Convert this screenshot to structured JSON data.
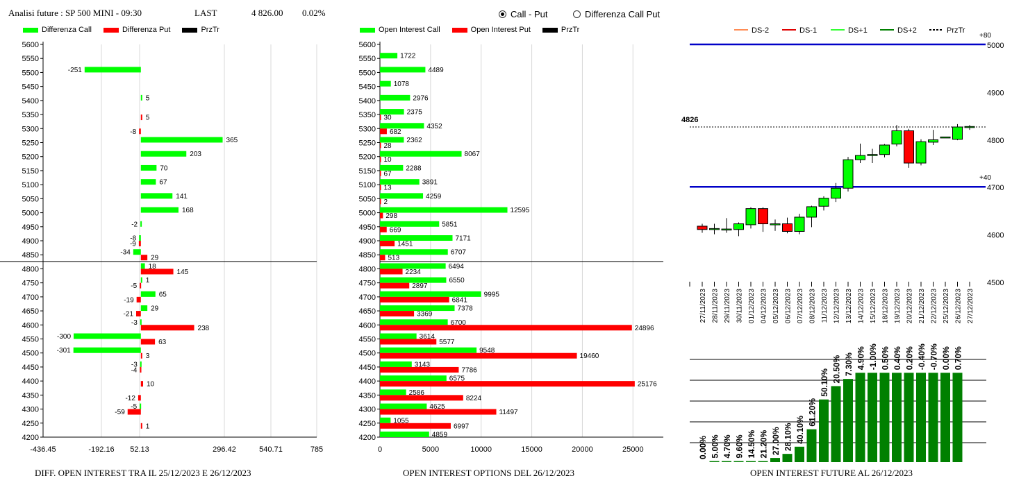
{
  "header": {
    "title": "Analisi future : SP 500 MINI - 09:30",
    "last_label": "LAST",
    "last_value": "4 826.00",
    "change": "0.02%"
  },
  "radio": {
    "call_put": "Call - Put",
    "diff_call_put": "Differenza Call Put",
    "selected": "call_put"
  },
  "colors": {
    "green": "#00ff00",
    "red": "#ff0000",
    "dark_green": "#008000",
    "blue": "#0000c8",
    "black": "#000000"
  },
  "footers": {
    "left": "DIFF. OPEN INTEREST TRA IL 25/12/2023 E 26/12/2023",
    "middle": "OPEN INTEREST OPTIONS DEL 26/12/2023",
    "right": "OPEN INTEREST FUTURE AL 26/12/2023"
  },
  "chart_data": [
    {
      "type": "bar",
      "orientation": "horizontal",
      "legend": [
        "Differenza Call",
        "Differenza Put",
        "PrzTr"
      ],
      "categories": [
        5600,
        5550,
        5500,
        5450,
        5400,
        5350,
        5300,
        5250,
        5200,
        5150,
        5100,
        5050,
        5000,
        4950,
        4900,
        4850,
        4800,
        4750,
        4700,
        4650,
        4600,
        4550,
        4500,
        4450,
        4400,
        4350,
        4300,
        4250,
        4200
      ],
      "series": [
        {
          "name": "Differenza Call",
          "color": "#00ff00",
          "values": [
            null,
            null,
            -251,
            null,
            5,
            null,
            null,
            365,
            203,
            70,
            67,
            141,
            168,
            -2,
            -8,
            -34,
            18,
            1,
            65,
            29,
            -3,
            -300,
            -301,
            -3,
            null,
            null,
            -5,
            null,
            null
          ]
        },
        {
          "name": "Differenza Put",
          "color": "#ff0000",
          "values": [
            null,
            null,
            null,
            null,
            null,
            5,
            -8,
            null,
            null,
            null,
            null,
            null,
            null,
            null,
            -9,
            29,
            145,
            -5,
            -19,
            -21,
            238,
            63,
            3,
            -4,
            10,
            -12,
            -59,
            1,
            null
          ]
        }
      ],
      "przTr": 4826,
      "xticks": [
        "-436.45",
        "-192.16",
        "52.13",
        "296.42",
        "540.71",
        "785"
      ],
      "xlim": [
        -436.45,
        785
      ],
      "ylim": [
        4200,
        5600
      ]
    },
    {
      "type": "bar",
      "orientation": "horizontal",
      "legend": [
        "Open Interest Call",
        "Open Interest Put",
        "PrzTr"
      ],
      "categories": [
        5600,
        5550,
        5500,
        5450,
        5400,
        5350,
        5300,
        5250,
        5200,
        5150,
        5100,
        5050,
        5000,
        4950,
        4900,
        4850,
        4800,
        4750,
        4700,
        4650,
        4600,
        4550,
        4500,
        4450,
        4400,
        4350,
        4300,
        4250,
        4200
      ],
      "series": [
        {
          "name": "Open Interest Call",
          "color": "#00ff00",
          "values": [
            null,
            1722,
            4489,
            1078,
            2976,
            2375,
            4352,
            2362,
            8067,
            2288,
            3891,
            4259,
            12595,
            5851,
            7171,
            6707,
            6494,
            6550,
            9995,
            7378,
            6700,
            3614,
            9548,
            3143,
            6575,
            2586,
            4625,
            1055,
            4859
          ]
        },
        {
          "name": "Open Interest Put",
          "color": "#ff0000",
          "values": [
            null,
            null,
            null,
            null,
            null,
            30,
            682,
            28,
            10,
            67,
            13,
            2,
            298,
            669,
            1451,
            513,
            2234,
            2897,
            6841,
            3369,
            24896,
            5577,
            19460,
            7786,
            25176,
            8224,
            11497,
            6997,
            null
          ]
        }
      ],
      "przTr": 4826,
      "xticks": [
        "0",
        "5000",
        "10000",
        "15000",
        "20000",
        "25000"
      ],
      "xlim": [
        0,
        28000
      ],
      "ylim": [
        4200,
        5600
      ]
    },
    {
      "type": "candlestick",
      "legend": [
        "DS-2",
        "DS-1",
        "DS+1",
        "DS+2",
        "PrzTr"
      ],
      "legend_colors": [
        "#ff8c55",
        "#e00000",
        "#33ff33",
        "#008000",
        "#000000"
      ],
      "dates": [
        "27/11/2023",
        "28/11/2023",
        "29/11/2023",
        "30/11/2023",
        "01/12/2023",
        "04/12/2023",
        "05/12/2023",
        "06/12/2023",
        "07/12/2023",
        "08/12/2023",
        "11/12/2023",
        "12/12/2023",
        "13/12/2023",
        "14/12/2023",
        "15/12/2023",
        "18/12/2023",
        "19/12/2023",
        "20/12/2023",
        "21/12/2023",
        "22/12/2023",
        "25/12/2023",
        "26/12/2023",
        "27/12/2023"
      ],
      "candles": [
        {
          "o": 4617,
          "h": 4622,
          "l": 4603,
          "c": 4610
        },
        {
          "o": 4610,
          "h": 4622,
          "l": 4600,
          "c": 4612
        },
        {
          "o": 4610,
          "h": 4634,
          "l": 4603,
          "c": 4611
        },
        {
          "o": 4610,
          "h": 4625,
          "l": 4596,
          "c": 4622
        },
        {
          "o": 4620,
          "h": 4657,
          "l": 4612,
          "c": 4654
        },
        {
          "o": 4654,
          "h": 4657,
          "l": 4605,
          "c": 4622
        },
        {
          "o": 4622,
          "h": 4631,
          "l": 4607,
          "c": 4622
        },
        {
          "o": 4622,
          "h": 4635,
          "l": 4602,
          "c": 4606
        },
        {
          "o": 4606,
          "h": 4643,
          "l": 4600,
          "c": 4636
        },
        {
          "o": 4636,
          "h": 4660,
          "l": 4615,
          "c": 4658
        },
        {
          "o": 4659,
          "h": 4680,
          "l": 4650,
          "c": 4676
        },
        {
          "o": 4676,
          "h": 4708,
          "l": 4668,
          "c": 4697
        },
        {
          "o": 4697,
          "h": 4763,
          "l": 4690,
          "c": 4757
        },
        {
          "o": 4757,
          "h": 4791,
          "l": 4750,
          "c": 4766
        },
        {
          "o": 4766,
          "h": 4780,
          "l": 4750,
          "c": 4768
        },
        {
          "o": 4768,
          "h": 4790,
          "l": 4762,
          "c": 4788
        },
        {
          "o": 4790,
          "h": 4830,
          "l": 4785,
          "c": 4818
        },
        {
          "o": 4818,
          "h": 4822,
          "l": 4740,
          "c": 4750
        },
        {
          "o": 4750,
          "h": 4800,
          "l": 4745,
          "c": 4795
        },
        {
          "o": 4794,
          "h": 4820,
          "l": 4788,
          "c": 4799
        },
        {
          "o": 4805,
          "h": 4805,
          "l": 4805,
          "c": 4805
        },
        {
          "o": 4800,
          "h": 4832,
          "l": 4798,
          "c": 4826
        },
        {
          "o": 4825,
          "h": 4830,
          "l": 4820,
          "c": 4827
        }
      ],
      "price_label": "4826",
      "przTr": 4826,
      "ds_lines": [
        {
          "value": 5000,
          "label": "+80"
        },
        {
          "value": 4700,
          "label": "+40"
        }
      ],
      "yticks": [
        5000,
        4900,
        4800,
        4700,
        4600,
        4500
      ],
      "ylim": [
        4500,
        5000
      ]
    },
    {
      "type": "bar",
      "color": "#008000",
      "labels": [
        "0.00%",
        "5.00%",
        "4.70%",
        "9.60%",
        "14.50%",
        "21.20%",
        "27.00%",
        "28.10%",
        "40.10%",
        "61.20%",
        "50.10%",
        "20.50%",
        "7.30%",
        "4.90%",
        "-1.00%",
        "0.50%",
        "0.40%",
        "0.20%",
        "-0.40%",
        "-0.70%",
        "0.00%",
        "0.70%"
      ],
      "values": [
        0,
        1,
        1,
        1,
        1,
        1,
        4,
        8,
        15,
        32,
        61,
        74,
        81,
        87,
        87,
        87,
        87,
        87,
        87,
        87,
        87,
        87
      ]
    }
  ]
}
